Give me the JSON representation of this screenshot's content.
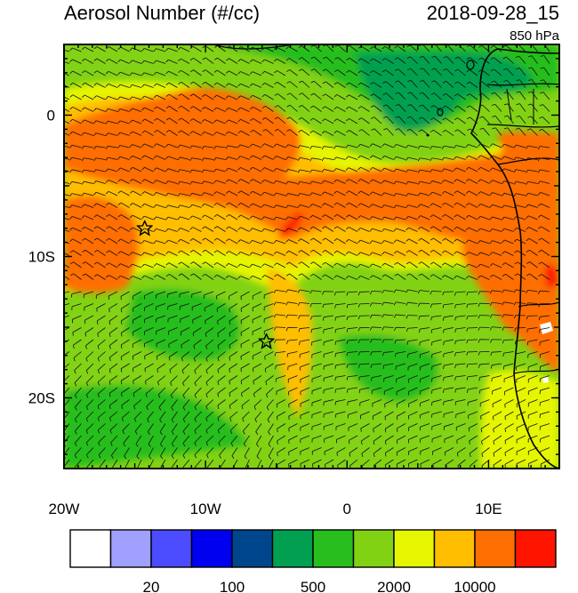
{
  "header": {
    "title": "Aerosol Number (#/cc)",
    "valid_time": "2018-09-28_15",
    "level": "850 hPa"
  },
  "map": {
    "lon_range": [
      -20,
      15
    ],
    "lat_range": [
      -25,
      5
    ],
    "x_ticks": [
      {
        "value": -20,
        "label": "20W"
      },
      {
        "value": -10,
        "label": "10W"
      },
      {
        "value": 0,
        "label": "0"
      },
      {
        "value": 10,
        "label": "10E"
      }
    ],
    "y_ticks": [
      {
        "value": 0,
        "label": "0"
      },
      {
        "value": -10,
        "label": "10S"
      },
      {
        "value": -20,
        "label": "20S"
      }
    ],
    "markers": [
      {
        "lon": -14.3,
        "lat": -8.0,
        "symbol": "star-icon"
      },
      {
        "lon": -5.7,
        "lat": -16.0,
        "symbol": "star-icon"
      }
    ]
  },
  "colorbar": {
    "colors": [
      "#ffffff",
      "#a0a0ff",
      "#4b4bff",
      "#0000f0",
      "#00468c",
      "#00a050",
      "#28be1e",
      "#82d214",
      "#e6f500",
      "#ffbe00",
      "#ff6e00",
      "#ff1400"
    ],
    "labels": [
      {
        "after_box": 2,
        "text": "20"
      },
      {
        "after_box": 4,
        "text": "100"
      },
      {
        "after_box": 6,
        "text": "500"
      },
      {
        "after_box": 8,
        "text": "2000"
      },
      {
        "after_box": 10,
        "text": "10000"
      }
    ]
  }
}
